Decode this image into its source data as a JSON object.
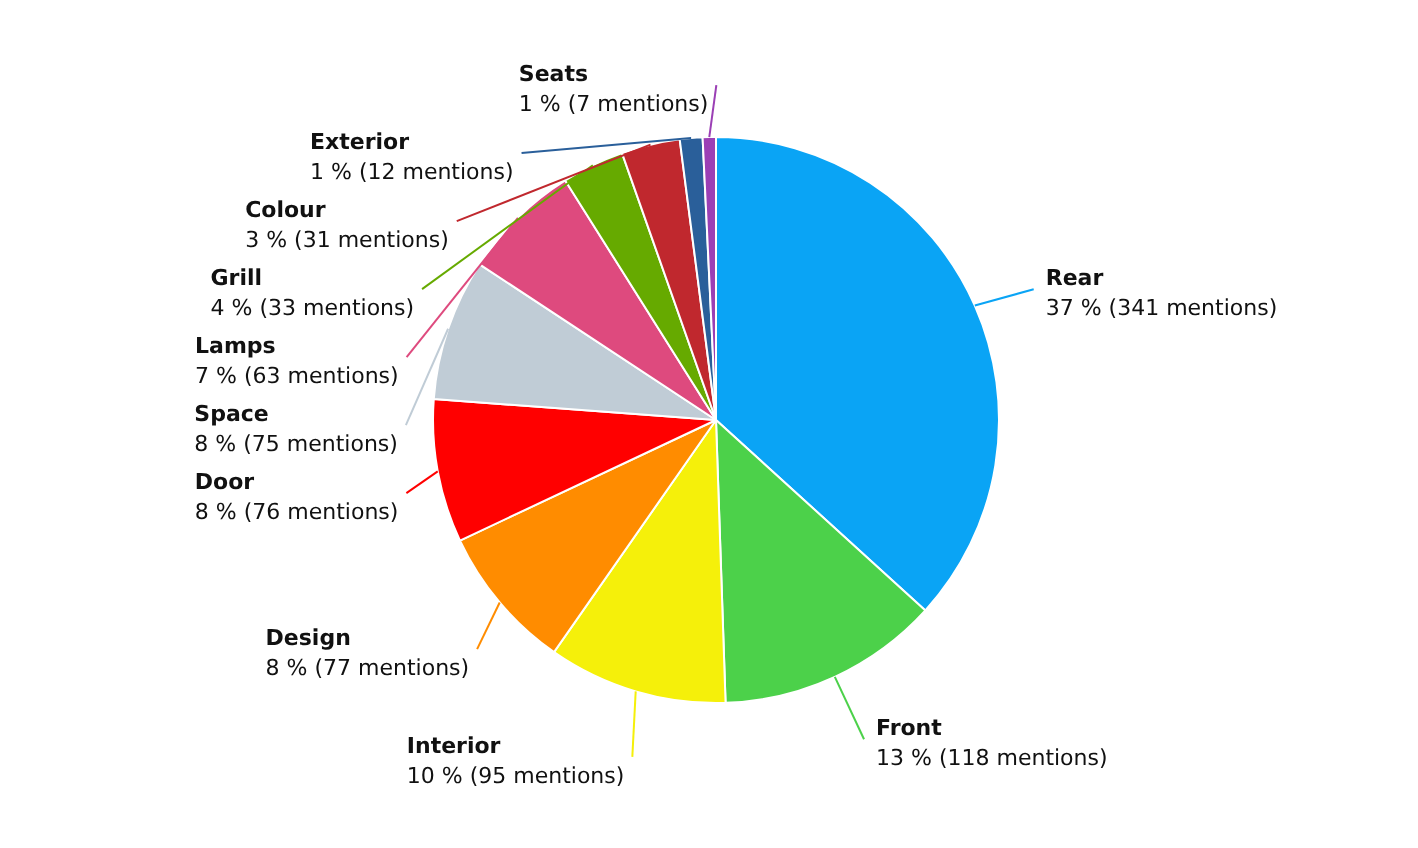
{
  "chart_data": {
    "type": "pie",
    "categories": [
      "Rear",
      "Front",
      "Interior",
      "Design",
      "Door",
      "Space",
      "Lamps",
      "Grill",
      "Colour",
      "Exterior",
      "Seats"
    ],
    "values": [
      341,
      118,
      95,
      77,
      76,
      75,
      63,
      33,
      31,
      12,
      7
    ],
    "colors": [
      "#0aa4f5",
      "#4cd14a",
      "#f5f00a",
      "#ff8c00",
      "#ff0000",
      "#c0ccd6",
      "#de4a7e",
      "#66aa00",
      "#c0282e",
      "#2a5f9a",
      "#9b3fb5"
    ],
    "value_labels": [
      "37 % (341 mentions)",
      "13 % (118 mentions)",
      "10 % (95 mentions)",
      "8 % (77 mentions)",
      "8 % (76 mentions)",
      "8 % (75 mentions)",
      "7 % (63 mentions)",
      "4 % (33 mentions)",
      "3 % (31 mentions)",
      "1 % (12 mentions)",
      "1 % (7 mentions)"
    ],
    "legend": false
  }
}
